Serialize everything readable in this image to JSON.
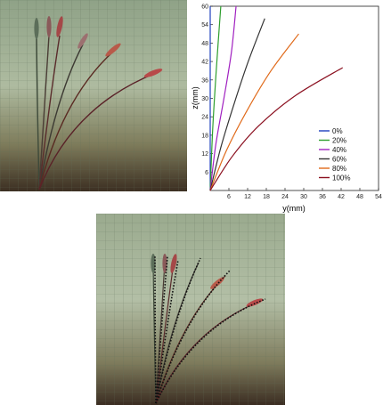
{
  "chart_data": {
    "type": "line",
    "xlabel": "y(mm)",
    "ylabel": "z(mm)",
    "xlim": [
      0,
      54
    ],
    "ylim": [
      0,
      60
    ],
    "xticks": [
      6,
      12,
      18,
      24,
      30,
      36,
      42,
      48,
      54
    ],
    "yticks": [
      6,
      12,
      18,
      24,
      30,
      36,
      42,
      48,
      54,
      60
    ],
    "grid": false,
    "legend_position": "right",
    "series": [
      {
        "name": "0%",
        "color": "#1f3fbf",
        "x": [
          0,
          0,
          0,
          0
        ],
        "y": [
          0,
          20,
          40,
          60
        ]
      },
      {
        "name": "20%",
        "color": "#2e9e2e",
        "x": [
          0,
          0.8,
          2.0,
          3.4
        ],
        "y": [
          0,
          20,
          40,
          60
        ]
      },
      {
        "name": "40%",
        "color": "#a020c0",
        "x": [
          0,
          1.8,
          4.4,
          6.8,
          8.3
        ],
        "y": [
          0,
          15,
          30,
          45,
          60
        ]
      },
      {
        "name": "60%",
        "color": "#333333",
        "x": [
          0,
          3.4,
          7.6,
          12.2,
          17.5
        ],
        "y": [
          0,
          14,
          28,
          42,
          56
        ]
      },
      {
        "name": "80%",
        "color": "#e06a1a",
        "x": [
          0,
          5.2,
          11.8,
          19.5,
          28.4
        ],
        "y": [
          0,
          13,
          26,
          39,
          51
        ]
      },
      {
        "name": "100%",
        "color": "#8b1020",
        "x": [
          0,
          7.0,
          15.5,
          27.5,
          42.5
        ],
        "y": [
          0,
          11,
          21,
          31,
          40
        ]
      }
    ]
  }
}
